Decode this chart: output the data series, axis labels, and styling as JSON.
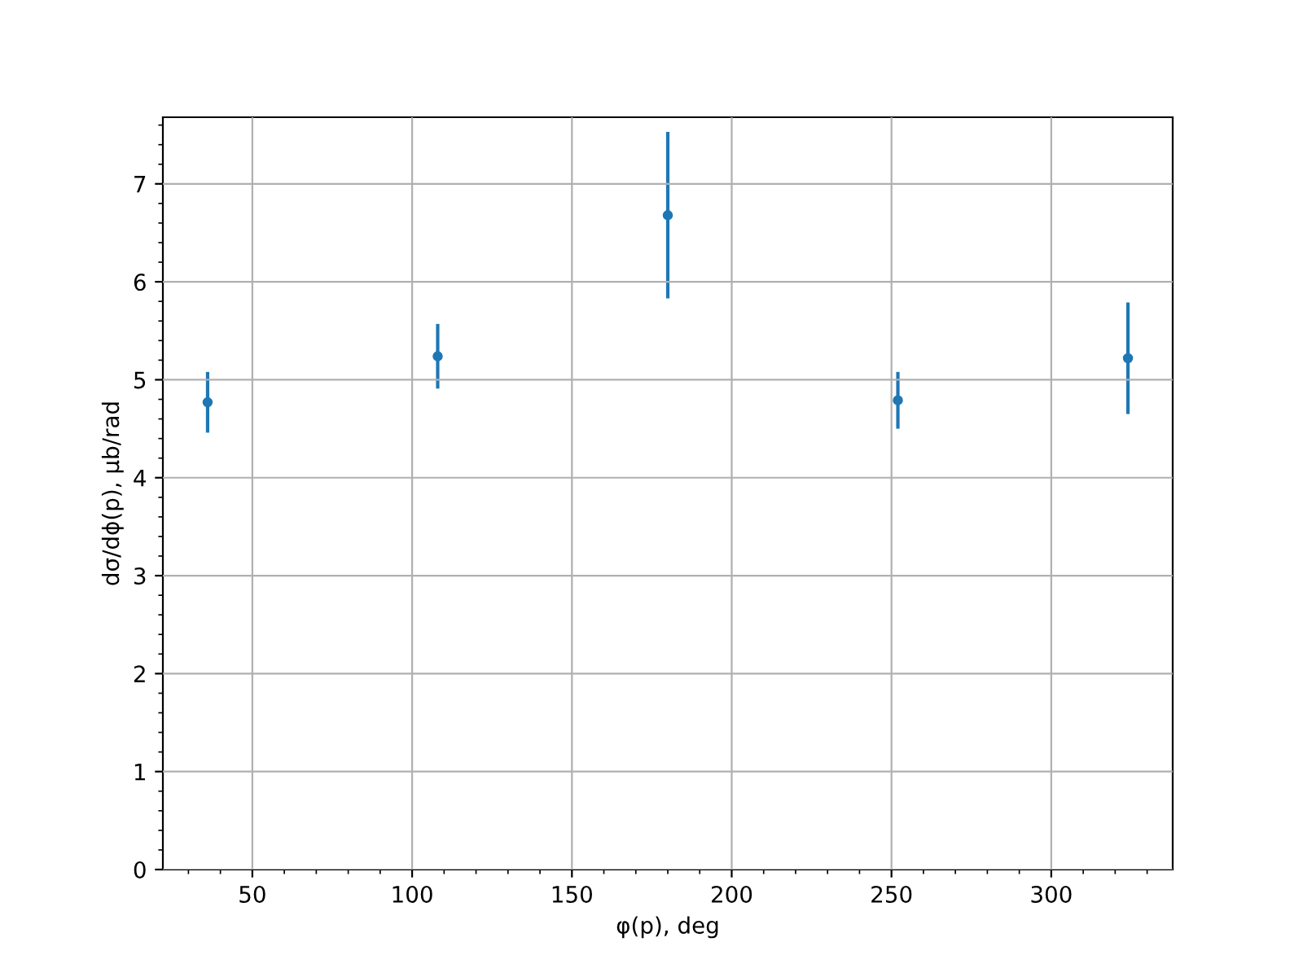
{
  "chart_data": {
    "type": "scatter",
    "xlabel": "φ(p), deg",
    "ylabel": "dσ/dϕ(p), μb/rad",
    "x": [
      36,
      108,
      180,
      252,
      324
    ],
    "series": [
      {
        "color": "#1f77b4",
        "values": [
          4.77,
          5.24,
          6.68,
          4.79,
          5.22
        ],
        "errors": [
          0.31,
          0.33,
          0.85,
          0.29,
          0.57
        ]
      }
    ],
    "xlim": [
      22,
      338
    ],
    "ylim": [
      0,
      7.68
    ],
    "xticks": [
      50,
      100,
      150,
      200,
      250,
      300
    ],
    "yticks": [
      0,
      1,
      2,
      3,
      4,
      5,
      6,
      7
    ],
    "grid": true,
    "marker": "circle",
    "legend": false
  }
}
